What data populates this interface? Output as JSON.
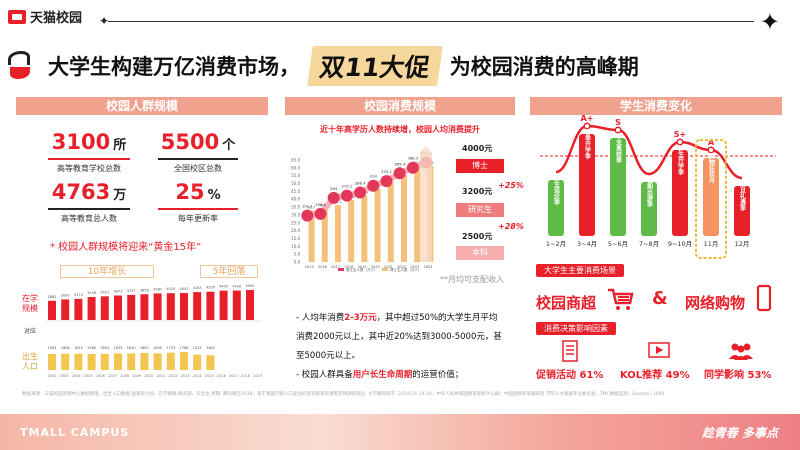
{
  "header": {
    "logo_text": "天猫校园",
    "title_part1": "大学生构建万亿消费市场，",
    "title_highlight": "双11大促",
    "title_part2": "为校园消费的高峰期"
  },
  "panel1": {
    "heading": "校园人群规模",
    "stats": [
      {
        "value": "3100",
        "unit": "所",
        "label": "高等教育学校总数"
      },
      {
        "value": "5500",
        "unit": "个",
        "label": "全国校区总数"
      },
      {
        "value": "4763",
        "unit": "万",
        "label": "高等教育总人数"
      },
      {
        "value": "25",
        "unit": "%",
        "label": "每年更新率"
      }
    ],
    "note": "* 校园人群规模将迎来“黄金15年”",
    "tag_growth": "10年增长",
    "tag_decline": "5年回落",
    "label_enrolled": "在学规模",
    "label_compare": "对应",
    "label_births": "出生人口",
    "enrolled": [
      2883,
      3090,
      3174,
      3448,
      3551,
      3672,
      3757,
      3859,
      3987,
      4020,
      4047,
      4183,
      4239,
      4400,
      4420,
      4500
    ],
    "births": [
      1584,
      1608,
      1615,
      1588,
      1604,
      1635,
      1640,
      1687,
      1655,
      1723,
      1786,
      1523,
      1465
    ],
    "years_births": [
      "2002",
      "2003",
      "2004",
      "2005",
      "2006",
      "2007",
      "2008",
      "2009",
      "2010",
      "2011",
      "2012",
      "2013",
      "2014",
      "2015",
      "2016",
      "2017",
      "2018",
      "2019"
    ]
  },
  "panel2": {
    "heading": "校园消费规模",
    "subtitle": "近十年高学历人数持续增，校园人均消费提升",
    "chart_data": {
      "type": "bar",
      "categories": [
        "2015",
        "2016",
        "2017",
        "2018",
        "2019",
        "2020",
        "2021",
        "2022",
        "2023",
        "2024"
      ],
      "series": [
        {
          "name": "硕士生人数（万人）",
          "values": [
            191.1,
            198.1,
            264.0,
            273.1,
            286.4,
            314.0,
            333.2,
            365.4,
            388.3,
            409.5
          ]
        },
        {
          "name": "博士生人数（万人）",
          "values": [
            32.7,
            34.2,
            36.2,
            39.6,
            42.4,
            46.7,
            50.9,
            55.6,
            61.2,
            61.2
          ]
        }
      ],
      "ylim": [
        0,
        65
      ]
    },
    "y_ticks": [
      "65.0",
      "60.0",
      "55.0",
      "50.0",
      "45.0",
      "40.0",
      "35.0",
      "30.0",
      "25.0",
      "20.0",
      "15.0",
      "10.0",
      "5.0",
      "0.0"
    ],
    "legend1": "硕士生人数（万人）",
    "legend2": "博士生人数（万人）",
    "degrees": [
      {
        "value": "4000元",
        "name": "博士",
        "pct": ""
      },
      {
        "value": "3200元",
        "name": "研究生",
        "pct": "+25%"
      },
      {
        "value": "2500元",
        "name": "本科",
        "pct": "+28%"
      }
    ],
    "footnote": "**月均可支配收入",
    "text_line1_a": "- 人均年消费",
    "text_line1_hl": "2-3万元",
    "text_line1_b": "，其中超过50%的大学生月平均",
    "text_line2": "消费2000元以上，其中近20%达到3000-5000元，甚",
    "text_line3": "至5000元以上。",
    "text_line4_a": "- 校园人群具备",
    "text_line4_hl": "用户长生命周期",
    "text_line4_b": "的运营价值；"
  },
  "panel3": {
    "heading": "学生消费变化",
    "chart_data": {
      "type": "bar",
      "categories": [
        "1~2月",
        "3~4月",
        "5~6月",
        "7~8月",
        "9~10月",
        "11月",
        "12月"
      ],
      "series": [
        {
          "name": "grade",
          "values": [
            "",
            "A+",
            "S",
            "",
            "S+",
            "A",
            ""
          ]
        }
      ],
      "bars": [
        "新生适应季",
        "春季开学季",
        "毕业离校季",
        "暑期出游季",
        "新生开学季",
        "购物狂欢月",
        "双旦礼遇季"
      ]
    },
    "scene_tag": "大学生主要消费场景",
    "scene1": "校园商超",
    "amp": "&",
    "scene2": "网络购物",
    "factor_tag": "消费决策影响因素",
    "factors": [
      {
        "label": "促销活动 61%"
      },
      {
        "label": "KOL推荐 49%"
      },
      {
        "label": "同学影响 53%"
      }
    ]
  },
  "source": "数据来源：天猫校园营销中心数据整理、出生人口数据-国家统计局、在学规模-教育部、毕业生 周期, 腾讯报告2018。基于我国学龄人口变动的高等教育资源需求预测研究[J]. 大学教育科学, 2024(2): 14-24；中华人民共和国教育部统计公报；中国国教育发展研究 学院人才发展专业委员会；TMC数据监测；Sample=1000",
  "footer": {
    "left": "TMALL CAMPUS",
    "right": "趁青春  多事点"
  },
  "colors": {
    "accent": "#e8202a",
    "green": "#5dbb46",
    "orange": "#f4a060",
    "gold": "#e9b250"
  }
}
